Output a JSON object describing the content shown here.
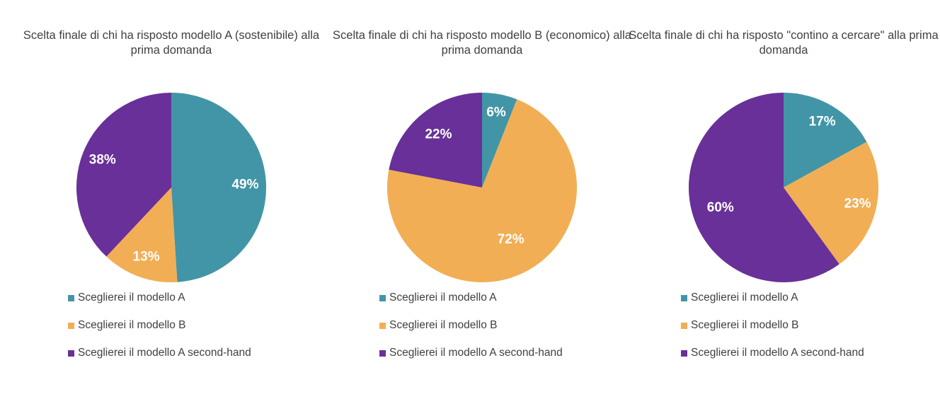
{
  "colors": {
    "series_a": "#4295a6",
    "series_b": "#f2ae55",
    "series_c": "#683098",
    "text": "#404040",
    "data_label": "#ffffff"
  },
  "chart_data": [
    {
      "type": "pie",
      "title": "Scelta finale di chi ha risposto modello A (sostenibile) alla prima domanda",
      "categories": [
        "Sceglierei il modello A",
        "Sceglierei il modello B",
        "Sceglierei il modello A second-hand"
      ],
      "values": [
        49,
        13,
        38
      ],
      "data_labels": [
        "49%",
        "13%",
        "38%"
      ],
      "legend_position": "bottom-left"
    },
    {
      "type": "pie",
      "title": "Scelta finale di chi ha risposto modello B (economico) alla prima domanda",
      "categories": [
        "Sceglierei il modello A",
        "Sceglierei il modello B",
        "Sceglierei il modello A second-hand"
      ],
      "values": [
        6,
        72,
        22
      ],
      "data_labels": [
        "6%",
        "72%",
        "22%"
      ],
      "legend_position": "bottom-left"
    },
    {
      "type": "pie",
      "title": "Scelta finale di chi ha risposto \"contino a cercare\" alla prima domanda",
      "categories": [
        "Sceglierei il modello A",
        "Sceglierei il modello B",
        "Sceglierei il modello A second-hand"
      ],
      "values": [
        17,
        23,
        60
      ],
      "data_labels": [
        "17%",
        "23%",
        "60%"
      ],
      "legend_position": "bottom-left"
    }
  ]
}
